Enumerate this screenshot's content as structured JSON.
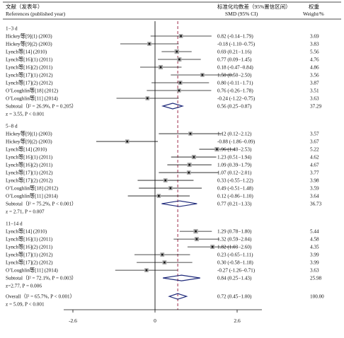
{
  "chart_data": {
    "type": "forest",
    "header": {
      "col1_line1": "文献（发表年）",
      "col1_line2": "References (published year)",
      "col2_line1": "标准化均数差（95%置信区间）",
      "col2_line2": "SMD (95% CI)",
      "col3_line1": "权重",
      "col3_line2": "Weight/%"
    },
    "xlim": [
      -2.6,
      2.6
    ],
    "x_ticks": [
      "-2.6",
      "0",
      "2.6"
    ],
    "overall_line_x": 0.72,
    "groups": [
      {
        "label": "1−3 d",
        "studies": [
          {
            "ref": "Hickey等[9](1) (2003)",
            "smd": 0.82,
            "lo": -0.14,
            "hi": 1.79,
            "ci_text": "0.82 (-0.14−1.79)",
            "weight": "3.69"
          },
          {
            "ref": "Hickey等[9](2) (2003)",
            "smd": -0.18,
            "lo": -1.1,
            "hi": 0.75,
            "ci_text": "-0.18 (-1.10−0.75)",
            "weight": "3.83"
          },
          {
            "ref": "Lynch等[14] (2010)",
            "smd": 0.69,
            "lo": 0.21,
            "hi": 1.16,
            "ci_text": "0.69 (0.21−1.16)",
            "weight": "5.56"
          },
          {
            "ref": "Lynch等[16](1) (2011)",
            "smd": 0.77,
            "lo": 0.09,
            "hi": 1.45,
            "ci_text": "0.77 (0.09−1.45)",
            "weight": "4.76"
          },
          {
            "ref": "Lynch等[16](2) (2011)",
            "smd": 0.18,
            "lo": -0.47,
            "hi": 0.84,
            "ci_text": "0.18 (-0.47−0.84)",
            "weight": "4.86"
          },
          {
            "ref": "Lynch等[17](1) (2012)",
            "smd": 1.5,
            "lo": 0.5,
            "hi": 2.5,
            "ci_text": "1.50 (0.50−2.50)",
            "weight": "3.56"
          },
          {
            "ref": "Lynch等[17](2) (2012)",
            "smd": 0.8,
            "lo": -0.11,
            "hi": 1.71,
            "ci_text": "0.80 (-0.11−1.71)",
            "weight": "3.87"
          },
          {
            "ref": "O’Loughlin等[18] (2012)",
            "smd": 0.76,
            "lo": -0.26,
            "hi": 1.78,
            "ci_text": "0.76 (-0.26−1.78)",
            "weight": "3.51"
          },
          {
            "ref": "O’Loughlin等[11] (2014)",
            "smd": -0.24,
            "lo": -1.22,
            "hi": 0.75,
            "ci_text": "-0.24 (-1.22−0.75)",
            "weight": "3.63"
          }
        ],
        "subtotal": {
          "label": "Subtotal（I² = 26.9%, P = 0.205）",
          "smd": 0.56,
          "lo": 0.25,
          "hi": 0.87,
          "ci_text": "0.56 (0.25−0.87)",
          "weight": "37.29"
        },
        "z_text": "z = 3.55, P < 0.001"
      },
      {
        "label": "5−8 d",
        "studies": [
          {
            "ref": "Hickey等[9](1) (2003)",
            "smd": 1.12,
            "lo": 0.12,
            "hi": 2.12,
            "ci_text": "1.12 (0.12−2.12)",
            "weight": "3.57"
          },
          {
            "ref": "Hickey等[9](2) (2003)",
            "smd": -0.88,
            "lo": -1.86,
            "hi": 0.09,
            "ci_text": "-0.88 (-1.86−0.09)",
            "weight": "3.67"
          },
          {
            "ref": "Lynch等[14] (2010)",
            "smd": 1.96,
            "lo": 1.4,
            "hi": 2.53,
            "ci_text": "1.96 (1.40−2.53)",
            "weight": "5.22"
          },
          {
            "ref": "Lynch等[16](1) (2011)",
            "smd": 1.23,
            "lo": 0.51,
            "hi": 1.94,
            "ci_text": "1.23 (0.51−1.94)",
            "weight": "4.62"
          },
          {
            "ref": "Lynch等[16](2) (2011)",
            "smd": 1.09,
            "lo": 0.39,
            "hi": 1.79,
            "ci_text": "1.09 (0.39−1.79)",
            "weight": "4.67"
          },
          {
            "ref": "Lynch等[17](1) (2012)",
            "smd": 1.07,
            "lo": 0.12,
            "hi": 2.01,
            "ci_text": "1.07 (0.12−2.01)",
            "weight": "3.77"
          },
          {
            "ref": "Lynch等[17](2) (2012)",
            "smd": 0.33,
            "lo": -0.55,
            "hi": 1.22,
            "ci_text": "0.33 (-0.55−1.22)",
            "weight": "3.98"
          },
          {
            "ref": "O’Loughlin等[18] (2012)",
            "smd": 0.49,
            "lo": -0.51,
            "hi": 1.48,
            "ci_text": "0.49 (-0.51−1.48)",
            "weight": "3.59"
          },
          {
            "ref": "O’Loughlin等[11] (2014)",
            "smd": 0.12,
            "lo": -0.86,
            "hi": 1.1,
            "ci_text": "0.12 (-0.86−1.10)",
            "weight": "3.64"
          }
        ],
        "subtotal": {
          "label": "Subtotal（I² = 75.2%, P < 0.001）",
          "smd": 0.77,
          "lo": 0.21,
          "hi": 1.33,
          "ci_text": "0.77 (0.21−1.33)",
          "weight": "36.73"
        },
        "z_text": "z = 2.71, P = 0.007"
      },
      {
        "label": "11−14 d",
        "studies": [
          {
            "ref": "Lynch等[14] (2010)",
            "smd": 1.29,
            "lo": 0.78,
            "hi": 1.8,
            "ci_text": "1.29 (0.78−1.80)",
            "weight": "5.44"
          },
          {
            "ref": "Lynch等[16](1) (2011)",
            "smd": 1.32,
            "lo": 0.59,
            "hi": 2.04,
            "ci_text": "1.32 (0.59−2.04)",
            "weight": "4.58"
          },
          {
            "ref": "Lynch等[16](2) (2011)",
            "smd": 1.82,
            "lo": 1.03,
            "hi": 2.6,
            "ci_text": "1.82 (1.03−2.60)",
            "weight": "4.35"
          },
          {
            "ref": "Lynch等[17](1) (2012)",
            "smd": 0.23,
            "lo": -0.65,
            "hi": 1.11,
            "ci_text": "0.23 (-0.65−1.11)",
            "weight": "3.99"
          },
          {
            "ref": "Lynch等[17](2) (2012)",
            "smd": 0.3,
            "lo": -0.58,
            "hi": 1.18,
            "ci_text": "0.30 (-0.58−1.18)",
            "weight": "3.99"
          },
          {
            "ref": "O’Loughlin等[11] (2014)",
            "smd": -0.27,
            "lo": -1.26,
            "hi": 0.71,
            "ci_text": "-0.27 (-1.26−0.71)",
            "weight": "3.63"
          }
        ],
        "subtotal": {
          "label": "Subtotal（I² = 72.1%, P = 0.003）",
          "smd": 0.84,
          "lo": 0.25,
          "hi": 1.43,
          "ci_text": "0.84 (0.25−1.43)",
          "weight": "25.98"
        },
        "z_text": "z=2.77, P = 0.006"
      }
    ],
    "overall": {
      "label": "Overall（I² = 65.7%, P < 0.001）",
      "smd": 0.72,
      "lo": 0.45,
      "hi": 1.0,
      "ci_text": "0.72 (0.45−1.00)",
      "weight": "100.00"
    },
    "overall_z_text": "z = 5.09, P < 0.001",
    "colors": {
      "diamond": "#1f2a7a",
      "reference_line": "#9c2a4a",
      "axis": "#111111",
      "box": "#a8a8a8",
      "marker": "#111111"
    }
  }
}
